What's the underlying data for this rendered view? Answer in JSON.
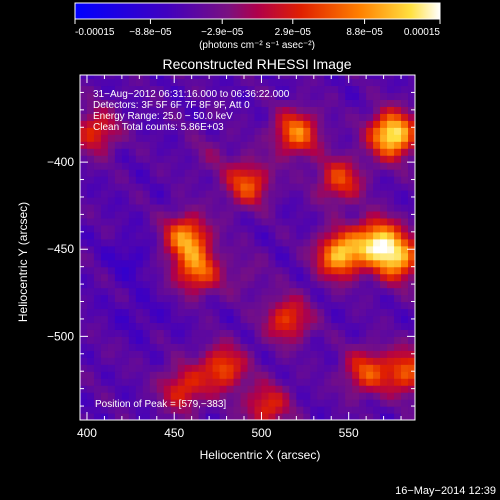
{
  "chart_data": {
    "type": "heatmap",
    "title": "Reconstructed RHESSI Image",
    "xlabel": "Heliocentric X (arcsec)",
    "ylabel": "Heliocentric Y (arcsec)",
    "xlim": [
      396,
      588
    ],
    "ylim": [
      -548,
      -350
    ],
    "x_ticks": [
      400,
      450,
      500,
      550
    ],
    "y_ticks": [
      -400,
      -450,
      -500
    ],
    "colorbar": {
      "range": [
        -0.00015,
        0.00015
      ],
      "ticks": [
        -0.00015,
        -8.8e-05,
        -2.9e-05,
        2.9e-05,
        8.8e-05,
        0.00015
      ],
      "tick_labels": [
        "-0.00015",
        "−8.8e−05",
        "−2.9e−05",
        "2.9e−05",
        "8.8e−05",
        "0.00015"
      ],
      "units": "(photons cm⁻² s⁻¹ asec⁻²)"
    },
    "info_lines": [
      "31−Aug−2012 06:31:16.000 to 06:36:22.000",
      "Detectors: 3F 5F 6F 7F 8F 9F, Att 0",
      "Energy Range: 25.0 − 50.0 keV",
      "Clean    Total counts: 5.86E+03"
    ],
    "peak": {
      "label": "Position of Peak = [579,−383]",
      "x": 579,
      "y": -383
    },
    "bright_regions": [
      {
        "x": 545,
        "y": -453,
        "value": 0.00012
      },
      {
        "x": 575,
        "y": -384,
        "value": 0.00015
      },
      {
        "x": 566,
        "y": -445,
        "value": 0.00011
      },
      {
        "x": 578,
        "y": -455,
        "value": 0.0001
      },
      {
        "x": 457,
        "y": -443,
        "value": 9e-05
      },
      {
        "x": 463,
        "y": -462,
        "value": 7e-05
      },
      {
        "x": 520,
        "y": -383,
        "value": 8e-05
      },
      {
        "x": 492,
        "y": -412,
        "value": 6e-05
      },
      {
        "x": 545,
        "y": -410,
        "value": 5e-05
      },
      {
        "x": 478,
        "y": -518,
        "value": 6e-05
      },
      {
        "x": 515,
        "y": -490,
        "value": 5e-05
      },
      {
        "x": 560,
        "y": -520,
        "value": 5e-05
      },
      {
        "x": 455,
        "y": -530,
        "value": 4e-05
      },
      {
        "x": 405,
        "y": -382,
        "value": 4e-05
      },
      {
        "x": 503,
        "y": -540,
        "value": 4e-05
      },
      {
        "x": 583,
        "y": -520,
        "value": 6e-05
      }
    ],
    "dark_regions": [
      {
        "x": 425,
        "y": -455,
        "value": -8e-05
      },
      {
        "x": 427,
        "y": -488,
        "value": -7e-05
      },
      {
        "x": 445,
        "y": -485,
        "value": -6e-05
      },
      {
        "x": 412,
        "y": -510,
        "value": -5e-05
      },
      {
        "x": 490,
        "y": -465,
        "value": -3e-05
      },
      {
        "x": 470,
        "y": -395,
        "value": -3e-05
      }
    ]
  },
  "footer_date": "16−May−2014 12:39"
}
